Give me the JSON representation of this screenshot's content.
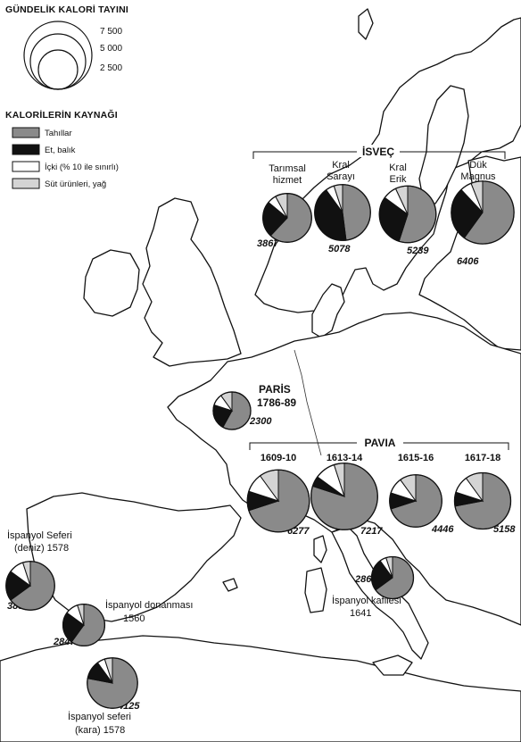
{
  "legend": {
    "size_title": "GÜNDELİK KALORİ TAYINI",
    "size_values": [
      "7 500",
      "5 000",
      "2 500"
    ],
    "source_title": "KALORİLERİN KAYNAĞI",
    "categories": [
      {
        "key": "grain",
        "label": "Tahıllar"
      },
      {
        "key": "meat",
        "label": "Et, balık"
      },
      {
        "key": "drink",
        "label": "İçki (% 10 ile sınırlı)"
      },
      {
        "key": "dairy",
        "label": "Süt ürünleri, yağ"
      }
    ]
  },
  "groups": {
    "sweden": "İSVEÇ",
    "paris_title": "PARİS",
    "paris_years": "1786-89",
    "pavia": "PAVIA"
  },
  "sites": {
    "s1": {
      "name_line1": "Tarımsal",
      "name_line2": "hizmet",
      "kcal": "3867"
    },
    "s2": {
      "name_line1": "Kral",
      "name_line2": "Sarayı",
      "kcal": "5078"
    },
    "s3": {
      "name_line1": "Kral",
      "name_line2": "Erik",
      "kcal": "5239"
    },
    "s4": {
      "name_line1": "Dük",
      "name_line2": "Magnus",
      "kcal": "6406"
    },
    "paris": {
      "kcal": "2300"
    },
    "p1": {
      "years": "1609-10",
      "kcal": "6277"
    },
    "p2": {
      "years": "1613-14",
      "kcal": "7217"
    },
    "p3": {
      "years": "1615-16",
      "kcal": "4446"
    },
    "p4": {
      "years": "1617-18",
      "kcal": "5158"
    },
    "sea": {
      "name_line1": "İspanyol Seferi",
      "name_line2": "(deniz) 1578",
      "kcal": "3853"
    },
    "navy": {
      "name_line1": "İspanyol donanması",
      "name_line2": "1560",
      "kcal": "2847"
    },
    "land": {
      "name_line1": "İspanyol seferi",
      "name_line2": "(kara) 1578",
      "kcal": "4125"
    },
    "convoy": {
      "name_line1": "İspanyol kafilesi",
      "name_line2": "1641",
      "kcal": "2863"
    }
  },
  "chart_data": {
    "type": "pie",
    "size_encoding": "circle area proportional to daily calories",
    "legend_sizes": [
      7500,
      5000,
      2500
    ],
    "category_order": [
      "Tahıllar",
      "Et, balık",
      "İçki (% 10 ile sınırlı)",
      "Süt ürünleri, yağ"
    ],
    "colors": {
      "grain": "#8a8a8a",
      "meat": "#111111",
      "drink": "#ffffff",
      "dairy": "#d4d4d4"
    },
    "pies": [
      {
        "id": "s1",
        "kcal": 3867,
        "shares": {
          "grain": 62,
          "meat": 24,
          "drink": 6,
          "dairy": 8
        }
      },
      {
        "id": "s2",
        "kcal": 5078,
        "shares": {
          "grain": 48,
          "meat": 42,
          "drink": 5,
          "dairy": 5
        }
      },
      {
        "id": "s3",
        "kcal": 5239,
        "shares": {
          "grain": 55,
          "meat": 30,
          "drink": 8,
          "dairy": 7
        }
      },
      {
        "id": "s4",
        "kcal": 6406,
        "shares": {
          "grain": 60,
          "meat": 28,
          "drink": 6,
          "dairy": 6
        }
      },
      {
        "id": "paris",
        "kcal": 2300,
        "shares": {
          "grain": 58,
          "meat": 22,
          "drink": 10,
          "dairy": 10
        }
      },
      {
        "id": "p1",
        "kcal": 6277,
        "shares": {
          "grain": 70,
          "meat": 10,
          "drink": 10,
          "dairy": 10
        }
      },
      {
        "id": "p2",
        "kcal": 7217,
        "shares": {
          "grain": 80,
          "meat": 5,
          "drink": 10,
          "dairy": 5
        }
      },
      {
        "id": "p3",
        "kcal": 4446,
        "shares": {
          "grain": 70,
          "meat": 10,
          "drink": 10,
          "dairy": 10
        }
      },
      {
        "id": "p4",
        "kcal": 5158,
        "shares": {
          "grain": 72,
          "meat": 8,
          "drink": 10,
          "dairy": 10
        }
      },
      {
        "id": "sea",
        "kcal": 3853,
        "shares": {
          "grain": 65,
          "meat": 20,
          "drink": 10,
          "dairy": 5
        }
      },
      {
        "id": "navy",
        "kcal": 2847,
        "shares": {
          "grain": 60,
          "meat": 25,
          "drink": 10,
          "dairy": 5
        }
      },
      {
        "id": "land",
        "kcal": 4125,
        "shares": {
          "grain": 78,
          "meat": 12,
          "drink": 5,
          "dairy": 5
        }
      },
      {
        "id": "convoy",
        "kcal": 2863,
        "shares": {
          "grain": 65,
          "meat": 25,
          "drink": 5,
          "dairy": 5
        }
      }
    ]
  }
}
